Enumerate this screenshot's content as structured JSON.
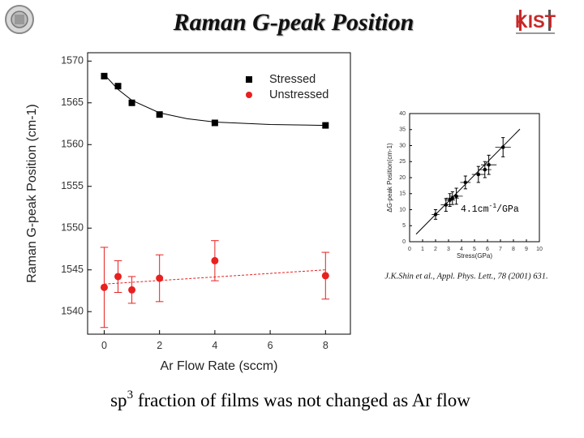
{
  "slide": {
    "title": "Raman  G-peak Position",
    "caption_parts": [
      "sp",
      "3",
      " fraction of films was not changed as Ar flow"
    ],
    "citation": "J.K.Shin et al., Appl. Phys. Lett., 78 (2001) 631.",
    "logo": "KIST"
  },
  "chart_data": [
    {
      "type": "scatter",
      "xlabel": "Ar Flow Rate (sccm)",
      "ylabel": "Raman G-peak Position (cm-1)",
      "xlim": [
        -0.6,
        8.9
      ],
      "ylim": [
        1537.3,
        1571
      ],
      "xticks": [
        0,
        2,
        4,
        6,
        8
      ],
      "yticks": [
        1540,
        1545,
        1550,
        1555,
        1560,
        1565,
        1570
      ],
      "legend": "upper right",
      "series": [
        {
          "name": "Stressed",
          "color": "#000000",
          "marker": "square",
          "x": [
            0,
            0.5,
            1,
            2,
            4,
            8
          ],
          "values": [
            1568.2,
            1567.0,
            1565.0,
            1563.6,
            1562.6,
            1562.3
          ]
        },
        {
          "name": "Unstressed",
          "color": "#e8201f",
          "marker": "circle",
          "x": [
            0,
            0.5,
            1,
            2,
            4,
            8
          ],
          "values": [
            1542.9,
            1544.2,
            1542.6,
            1544.0,
            1546.1,
            1544.3
          ],
          "errors": [
            4.8,
            1.9,
            1.6,
            2.8,
            2.4,
            2.8
          ]
        }
      ],
      "fits": [
        {
          "color": "#000000",
          "dash": false,
          "x": [
            0,
            0.5,
            1,
            2,
            3,
            4,
            6,
            8
          ],
          "values": [
            1568.4,
            1566.6,
            1565.3,
            1563.8,
            1563.1,
            1562.7,
            1562.4,
            1562.3
          ]
        },
        {
          "color": "#e8201f",
          "dash": true,
          "x": [
            0,
            8
          ],
          "values": [
            1543.3,
            1545.0
          ]
        }
      ]
    },
    {
      "type": "scatter",
      "xlabel": "Stress(GPa)",
      "ylabel": "ΔG-peak Position(cm-1)",
      "annotation_parts": [
        "4.1cm",
        "-1",
        "/GPa"
      ],
      "xlim": [
        0,
        10
      ],
      "ylim": [
        0,
        40
      ],
      "xticks": [
        0,
        1,
        2,
        3,
        4,
        5,
        6,
        7,
        8,
        9,
        10
      ],
      "yticks": [
        0,
        5,
        10,
        15,
        20,
        25,
        30,
        35,
        40
      ],
      "series": [
        {
          "color": "#000000",
          "marker": "circle",
          "x": [
            2,
            2.8,
            3.1,
            3.3,
            3.6,
            4.3,
            5.3,
            5.8,
            6.1,
            7.2
          ],
          "values": [
            8.5,
            11.5,
            13,
            13.6,
            14.2,
            18.5,
            21,
            22.5,
            24,
            29.5
          ],
          "xerrors": [
            0.3,
            0.4,
            0.4,
            0.5,
            0.5,
            0.4,
            0.5,
            0.5,
            0.6,
            0.6
          ],
          "errors": [
            1.5,
            2,
            2,
            2,
            2.5,
            2,
            2.5,
            2.5,
            3,
            3
          ]
        }
      ],
      "fits": [
        {
          "color": "#000000",
          "dash": false,
          "x": [
            0.5,
            8.5
          ],
          "values": [
            2.35,
            35.15
          ]
        }
      ]
    }
  ]
}
